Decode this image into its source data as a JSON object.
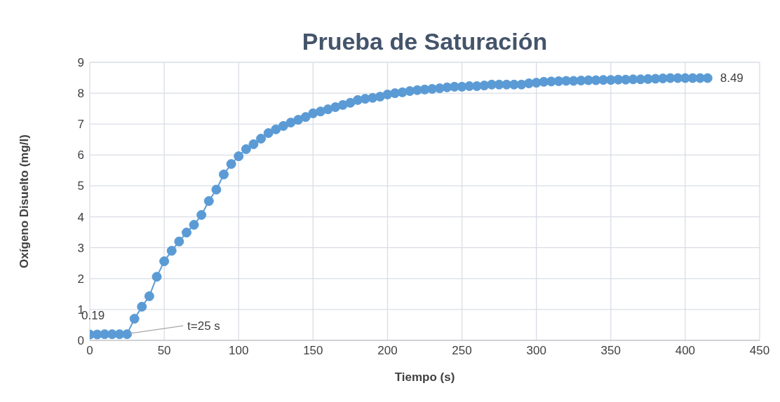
{
  "chart_data": {
    "type": "line",
    "title": "Prueba de Saturación",
    "xlabel": "Tiempo (s)",
    "ylabel": "Oxígeno Disuelto (mg/l)",
    "x": [
      0,
      5,
      10,
      15,
      20,
      25,
      30,
      35,
      40,
      45,
      50,
      55,
      60,
      65,
      70,
      75,
      80,
      85,
      90,
      95,
      100,
      105,
      110,
      115,
      120,
      125,
      130,
      135,
      140,
      145,
      150,
      155,
      160,
      165,
      170,
      175,
      180,
      185,
      190,
      195,
      200,
      205,
      210,
      215,
      220,
      225,
      230,
      235,
      240,
      245,
      250,
      255,
      260,
      265,
      270,
      275,
      280,
      285,
      290,
      295,
      300,
      305,
      310,
      315,
      320,
      325,
      330,
      335,
      340,
      345,
      350,
      355,
      360,
      365,
      370,
      375,
      380,
      385,
      390,
      395,
      400,
      405,
      410,
      415
    ],
    "series": [
      {
        "color": "#5b9bd5",
        "values": [
          0.19,
          0.19,
          0.2,
          0.2,
          0.2,
          0.2,
          0.7,
          1.09,
          1.43,
          2.06,
          2.56,
          2.9,
          3.2,
          3.49,
          3.74,
          4.06,
          4.51,
          4.88,
          5.37,
          5.71,
          5.96,
          6.19,
          6.35,
          6.53,
          6.71,
          6.83,
          6.94,
          7.05,
          7.14,
          7.23,
          7.35,
          7.41,
          7.48,
          7.55,
          7.62,
          7.69,
          7.78,
          7.82,
          7.85,
          7.89,
          7.96,
          8.0,
          8.03,
          8.07,
          8.1,
          8.12,
          8.14,
          8.16,
          8.19,
          8.21,
          8.21,
          8.23,
          8.23,
          8.25,
          8.28,
          8.28,
          8.28,
          8.28,
          8.28,
          8.32,
          8.34,
          8.37,
          8.38,
          8.39,
          8.4,
          8.4,
          8.41,
          8.42,
          8.42,
          8.43,
          8.43,
          8.44,
          8.44,
          8.45,
          8.45,
          8.46,
          8.47,
          8.48,
          8.49,
          8.49,
          8.49,
          8.49,
          8.49,
          8.49
        ],
        "value_labels": [
          "0.19",
          null,
          null,
          null,
          null,
          null,
          null,
          null,
          null,
          null,
          null,
          null,
          null,
          null,
          null,
          null,
          null,
          null,
          null,
          null,
          null,
          null,
          null,
          null,
          null,
          null,
          null,
          null,
          null,
          null,
          null,
          null,
          null,
          null,
          null,
          null,
          null,
          null,
          null,
          null,
          null,
          null,
          null,
          null,
          null,
          null,
          null,
          null,
          null,
          null,
          null,
          null,
          null,
          null,
          null,
          null,
          null,
          null,
          null,
          null,
          null,
          null,
          null,
          null,
          null,
          null,
          null,
          null,
          null,
          null,
          null,
          null,
          null,
          null,
          null,
          null,
          null,
          null,
          null,
          null,
          null,
          null,
          null,
          "8.49"
        ]
      }
    ],
    "annotations": [
      {
        "text": "t=25 s",
        "x": 25,
        "y": 0.2
      }
    ],
    "xlim": [
      0,
      450
    ],
    "xticks": [
      0,
      50,
      100,
      150,
      200,
      250,
      300,
      350,
      400,
      450
    ],
    "ylim": [
      0,
      9
    ],
    "yticks": [
      0,
      1,
      2,
      3,
      4,
      5,
      6,
      7,
      8,
      9
    ],
    "grid": true,
    "marker": "circle",
    "line_style": "solid",
    "legend": false
  }
}
